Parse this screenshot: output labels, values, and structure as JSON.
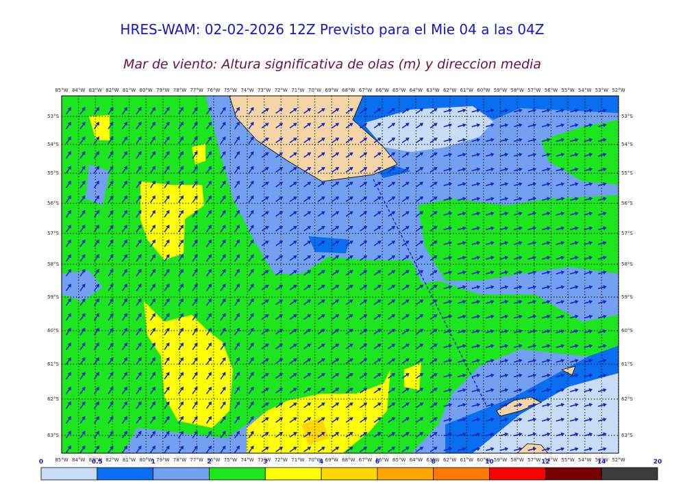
{
  "header": {
    "title": "HRES-WAM: 02-02-2026 12Z Previsto para el Mie 04 a las 04Z",
    "subtitle": "Mar de viento: Altura significativa de olas (m) y direccion media"
  },
  "map": {
    "lon_labels": [
      "85°W",
      "84°W",
      "83°W",
      "82°W",
      "81°W",
      "80°W",
      "79°W",
      "78°W",
      "77°W",
      "76°W",
      "75°W",
      "74°W",
      "73°W",
      "72°W",
      "71°W",
      "70°W",
      "69°W",
      "68°W",
      "67°W",
      "66°W",
      "65°W",
      "64°W",
      "63°W",
      "62°W",
      "61°W",
      "60°W",
      "59°W",
      "58°W",
      "57°W",
      "56°W",
      "55°W",
      "54°W",
      "53°W",
      "52°W"
    ],
    "lat_labels": [
      "53°S",
      "54°S",
      "55°S",
      "56°S",
      "57°S",
      "58°S",
      "59°S",
      "60°S",
      "61°S",
      "62°S",
      "63°S"
    ]
  },
  "colorbar": {
    "labels": [
      0,
      0.5,
      1,
      2,
      3,
      4,
      6,
      8,
      10,
      12,
      14,
      20
    ],
    "colors": [
      "#c8dcf5",
      "#0a6ef0",
      "#73a0f0",
      "#1ee61e",
      "#ffff00",
      "#ffd700",
      "#ffa500",
      "#ff7800",
      "#ff0000",
      "#780000",
      "#3c3c3c"
    ]
  }
}
